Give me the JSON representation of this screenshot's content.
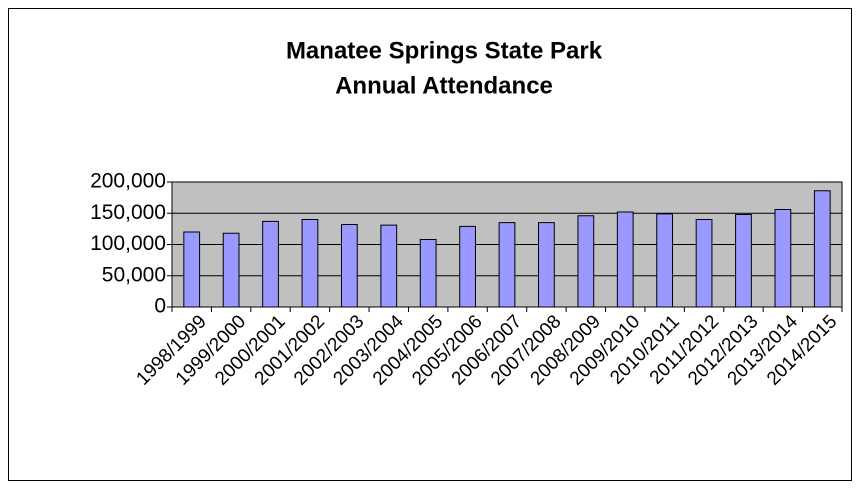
{
  "chart_data": {
    "type": "bar",
    "title": [
      "Manatee Springs State Park",
      "Annual Attendance"
    ],
    "categories": [
      "1998/1999",
      "1999/2000",
      "2000/2001",
      "2001/2002",
      "2002/2003",
      "2003/2004",
      "2004/2005",
      "2005/2006",
      "2006/2007",
      "2007/2008",
      "2008/2009",
      "2009/2010",
      "2010/2011",
      "2011/2012",
      "2012/2013",
      "2013/2014",
      "2014/2015"
    ],
    "values": [
      120000,
      118000,
      137000,
      140000,
      132000,
      131000,
      108000,
      129000,
      135000,
      135000,
      146000,
      152000,
      149000,
      140000,
      148000,
      156000,
      186000
    ],
    "color": "#9999ff",
    "ylim": [
      0,
      200000
    ],
    "yticks": [
      0,
      {
        "value": 50000,
        "label": "50,000"
      },
      {
        "value": 100000,
        "label": "100,000"
      },
      {
        "value": 150000,
        "label": "150,000"
      },
      {
        "value": 200000,
        "label": "200,000"
      }
    ],
    "grid": true,
    "plot_background": "#c0c0c0"
  }
}
